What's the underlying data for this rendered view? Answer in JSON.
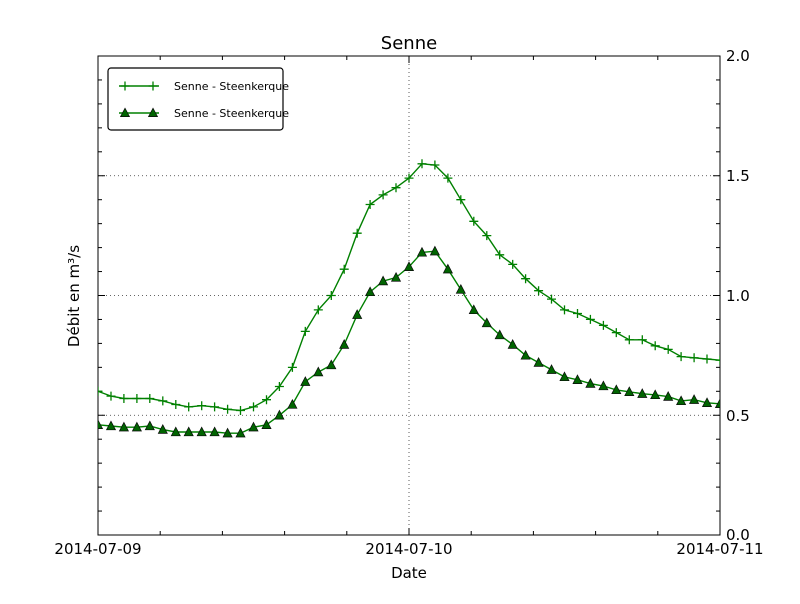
{
  "figure": {
    "background_color": "#ffffff",
    "accent_green": "#008000",
    "marker_fill_green": "#006400"
  },
  "chart_data": {
    "type": "line",
    "title": "Senne",
    "xlabel": "Date",
    "ylabel": "Débit en m³/s",
    "x_tick_labels": [
      "2014-07-09",
      "2014-07-10",
      "2014-07-11"
    ],
    "y_tick_labels": [
      "0.0",
      "0.5",
      "1.0",
      "1.5",
      "2.0"
    ],
    "ylim": [
      0.0,
      2.0
    ],
    "x_range_hours": [
      0,
      48
    ],
    "x_unit": "hours since 2014-07-09 00:00, hourly points",
    "grid": "dotted lines at day boundary (x=2014-07-10) and every 0.5 on y",
    "legend_position": "upper left",
    "series": [
      {
        "name": "Senne - Steenkerque",
        "marker": "plus",
        "color": "#008000",
        "values": [
          0.6,
          0.58,
          0.57,
          0.57,
          0.57,
          0.56,
          0.545,
          0.535,
          0.54,
          0.535,
          0.525,
          0.52,
          0.535,
          0.565,
          0.62,
          0.7,
          0.85,
          0.94,
          1.0,
          1.11,
          1.26,
          1.38,
          1.42,
          1.45,
          1.49,
          1.55,
          1.545,
          1.49,
          1.4,
          1.31,
          1.25,
          1.17,
          1.13,
          1.07,
          1.02,
          0.985,
          0.94,
          0.925,
          0.9,
          0.875,
          0.845,
          0.815,
          0.815,
          0.79,
          0.775,
          0.745,
          0.74,
          0.735,
          0.73
        ]
      },
      {
        "name": "Senne - Steenkerque",
        "marker": "triangle",
        "color": "#008000",
        "marker_fill": "#006400",
        "values": [
          0.46,
          0.455,
          0.45,
          0.45,
          0.455,
          0.44,
          0.43,
          0.43,
          0.43,
          0.43,
          0.425,
          0.425,
          0.45,
          0.46,
          0.5,
          0.545,
          0.64,
          0.68,
          0.71,
          0.795,
          0.92,
          1.015,
          1.06,
          1.075,
          1.12,
          1.18,
          1.185,
          1.11,
          1.025,
          0.94,
          0.885,
          0.835,
          0.795,
          0.75,
          0.72,
          0.69,
          0.66,
          0.648,
          0.632,
          0.622,
          0.606,
          0.598,
          0.59,
          0.585,
          0.578,
          0.56,
          0.565,
          0.552,
          0.548
        ]
      }
    ]
  }
}
